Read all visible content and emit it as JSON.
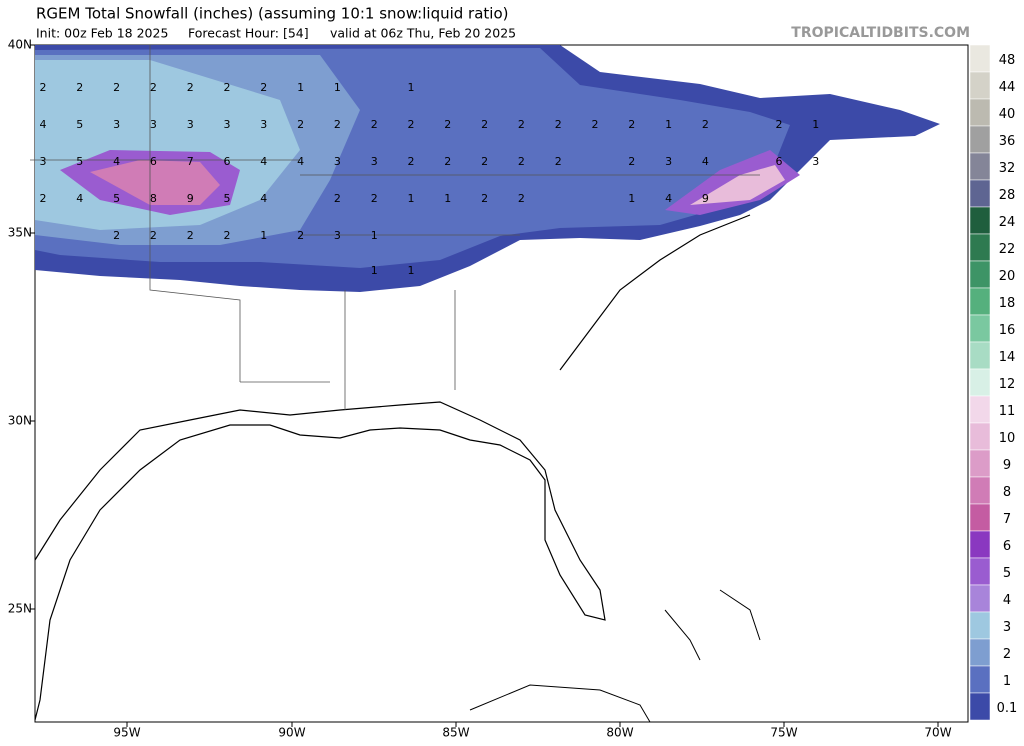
{
  "header": {
    "title": "RGEM Total Snowfall (inches) (assuming 10:1 snow:liquid ratio)",
    "init": "Init: 00z Feb 18 2025",
    "forecast_hour": "Forecast Hour: [54]",
    "valid": "valid at 06z Thu, Feb 20 2025",
    "brand": "TROPICALTIDBITS.COM"
  },
  "axes": {
    "lat_labels": [
      "40N",
      "35N",
      "30N",
      "25N"
    ],
    "lon_labels": [
      "95W",
      "90W",
      "85W",
      "80W",
      "75W",
      "70W"
    ]
  },
  "map_labels": [
    [
      2,
      2,
      2,
      2,
      2,
      2,
      2,
      1,
      1,
      null,
      1
    ],
    [
      4,
      5,
      3,
      3,
      3,
      3,
      3,
      2,
      2,
      2,
      2,
      2,
      2,
      2,
      2,
      2,
      2,
      1,
      2,
      null,
      2,
      1
    ],
    [
      3,
      5,
      4,
      6,
      7,
      6,
      4,
      4,
      3,
      3,
      2,
      2,
      2,
      2,
      2,
      null,
      2,
      3,
      4,
      null,
      6,
      3
    ],
    [
      2,
      4,
      5,
      8,
      9,
      5,
      4,
      null,
      2,
      2,
      1,
      1,
      2,
      2,
      null,
      null,
      1,
      4,
      9
    ],
    [
      null,
      null,
      2,
      2,
      2,
      2,
      1,
      2,
      3,
      1
    ],
    [
      null,
      null,
      null,
      null,
      null,
      null,
      null,
      null,
      null,
      1,
      1
    ]
  ],
  "colorbar": {
    "levels": [
      48,
      44,
      40,
      36,
      32,
      28,
      24,
      22,
      20,
      18,
      16,
      14,
      12,
      11,
      10,
      9,
      8,
      7,
      6,
      5,
      4,
      3,
      2,
      1,
      0.1
    ],
    "colors": [
      "#eae8e0",
      "#d4d2c8",
      "#bcbab0",
      "#a0a0a0",
      "#848598",
      "#5e6592",
      "#1f5e3d",
      "#2e7a50",
      "#3d9466",
      "#55b07d",
      "#7ac8a0",
      "#a8dcc4",
      "#d8f0e6",
      "#f2d8ea",
      "#e8bcda",
      "#dc9cc8",
      "#d07cb6",
      "#c45ca2",
      "#8a38c0",
      "#9a5cd0",
      "#a884da",
      "#9ec8e0",
      "#7e9ed0",
      "#5a70c0",
      "#3c4aa8"
    ]
  }
}
